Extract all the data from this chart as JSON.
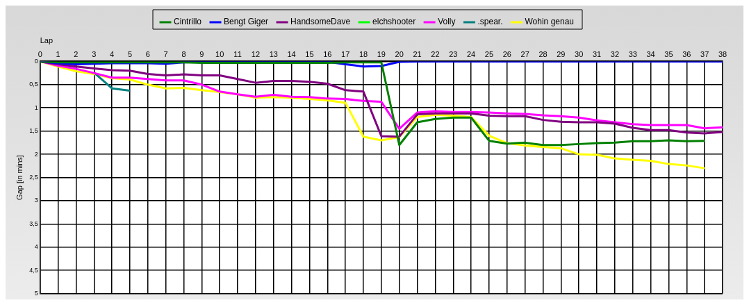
{
  "chart_data": {
    "type": "line",
    "xlabel": "Lap",
    "ylabel": "Gap [in mins]",
    "xlim": [
      0,
      38
    ],
    "xticks": [
      0,
      1,
      2,
      3,
      4,
      5,
      6,
      7,
      8,
      9,
      10,
      11,
      12,
      13,
      14,
      15,
      16,
      17,
      18,
      19,
      20,
      21,
      22,
      23,
      24,
      25,
      26,
      27,
      28,
      29,
      30,
      31,
      32,
      33,
      34,
      35,
      36,
      37,
      38
    ],
    "ylim": [
      5,
      0
    ],
    "yticks": [
      {
        "value": 0,
        "label": "0"
      },
      {
        "value": 0.5,
        "label": "0,5"
      },
      {
        "value": 1,
        "label": "1"
      },
      {
        "value": 1.5,
        "label": "1,5"
      },
      {
        "value": 2,
        "label": "2"
      },
      {
        "value": 2.5,
        "label": "2,5"
      },
      {
        "value": 3,
        "label": "3"
      },
      {
        "value": 3.5,
        "label": "3,5"
      },
      {
        "value": 4,
        "label": "4"
      },
      {
        "value": 4.5,
        "label": "4,5"
      },
      {
        "value": 5,
        "label": "5"
      }
    ],
    "grid": true,
    "legend": "top",
    "marker": "none",
    "line_style": "solid",
    "x": [
      0,
      1,
      2,
      3,
      4,
      5,
      6,
      7,
      8,
      9,
      10,
      11,
      12,
      13,
      14,
      15,
      16,
      17,
      18,
      19,
      20,
      21,
      22,
      23,
      24,
      25,
      26,
      27,
      28,
      29,
      30,
      31,
      32,
      33,
      34,
      35,
      36,
      37,
      38
    ],
    "series": [
      {
        "name": "Cintrillo",
        "color": "#008000",
        "values": [
          0,
          0.02,
          0.02,
          0.02,
          0.02,
          0.02,
          0.02,
          0.02,
          0.02,
          0.03,
          0.03,
          0.03,
          0.03,
          0.03,
          0.03,
          0.03,
          0.03,
          0.02,
          0.02,
          0.02,
          1.8,
          1.31,
          1.24,
          1.21,
          1.21,
          1.71,
          1.77,
          1.75,
          1.8,
          1.8,
          1.78,
          1.76,
          1.75,
          1.72,
          1.72,
          1.7,
          1.72,
          1.71,
          null
        ]
      },
      {
        "name": "Bengt Giger",
        "color": "#0000ff",
        "values": [
          0,
          0.04,
          0.06,
          0.05,
          0.04,
          0.04,
          0.04,
          0.05,
          0.02,
          0.01,
          0.01,
          0.01,
          0.01,
          0.01,
          0.01,
          0.01,
          0.01,
          0.06,
          0.11,
          0.1,
          0.01,
          0,
          0,
          0,
          0,
          0,
          0,
          0,
          0,
          0,
          0,
          0,
          0,
          0,
          0,
          0,
          0,
          0,
          0
        ]
      },
      {
        "name": "HandsomeDave",
        "color": "#800080",
        "values": [
          0,
          0.06,
          0.11,
          0.15,
          0.19,
          0.2,
          0.27,
          0.3,
          0.28,
          0.3,
          0.3,
          0.38,
          0.46,
          0.42,
          0.42,
          0.44,
          0.48,
          0.62,
          0.65,
          1.61,
          1.62,
          1.14,
          1.12,
          1.12,
          1.12,
          1.17,
          1.18,
          1.18,
          1.26,
          1.3,
          1.31,
          1.31,
          1.34,
          1.43,
          1.48,
          1.48,
          1.53,
          1.55,
          1.52
        ]
      },
      {
        "name": "elchshooter",
        "color": "#00ff00",
        "values": [
          null,
          null,
          null,
          null,
          null,
          null,
          null,
          null,
          null,
          null,
          null,
          null,
          null,
          null,
          null,
          null,
          null,
          null,
          null,
          null,
          null,
          null,
          null,
          null,
          null,
          null,
          null,
          null,
          null,
          null,
          null,
          null,
          null,
          null,
          null,
          null,
          null,
          null,
          null
        ]
      },
      {
        "name": "Volly",
        "color": "#ff00ff",
        "values": [
          0,
          0.09,
          0.16,
          0.25,
          0.35,
          0.35,
          0.38,
          0.41,
          0.41,
          0.5,
          0.65,
          0.71,
          0.76,
          0.72,
          0.76,
          0.77,
          0.8,
          0.81,
          0.85,
          0.87,
          1.45,
          1.1,
          1.07,
          1.09,
          1.09,
          1.1,
          1.12,
          1.13,
          1.16,
          1.18,
          1.21,
          1.27,
          1.31,
          1.35,
          1.37,
          1.37,
          1.37,
          1.44,
          1.42
        ]
      },
      {
        "name": ".spear.",
        "color": "#008080",
        "values": [
          null,
          null,
          null,
          0.24,
          0.58,
          0.63,
          null,
          null,
          null,
          null,
          null,
          null,
          null,
          null,
          null,
          null,
          null,
          null,
          null,
          null,
          null,
          null,
          null,
          null,
          null,
          null,
          null,
          null,
          null,
          null,
          null,
          null,
          null,
          null,
          null,
          null,
          null,
          null,
          null
        ]
      },
      {
        "name": "Wohin genau",
        "color": "#ffff00",
        "values": [
          0,
          0.11,
          0.21,
          0.27,
          0.36,
          0.39,
          0.5,
          0.58,
          0.57,
          0.62,
          0.66,
          0.71,
          0.78,
          0.77,
          0.78,
          0.81,
          0.84,
          0.89,
          1.62,
          1.7,
          1.63,
          1.2,
          1.15,
          1.17,
          1.2,
          1.6,
          1.76,
          1.81,
          1.84,
          1.87,
          2.0,
          2.01,
          2.09,
          2.12,
          2.14,
          2.21,
          2.24,
          2.3,
          null
        ]
      }
    ]
  }
}
